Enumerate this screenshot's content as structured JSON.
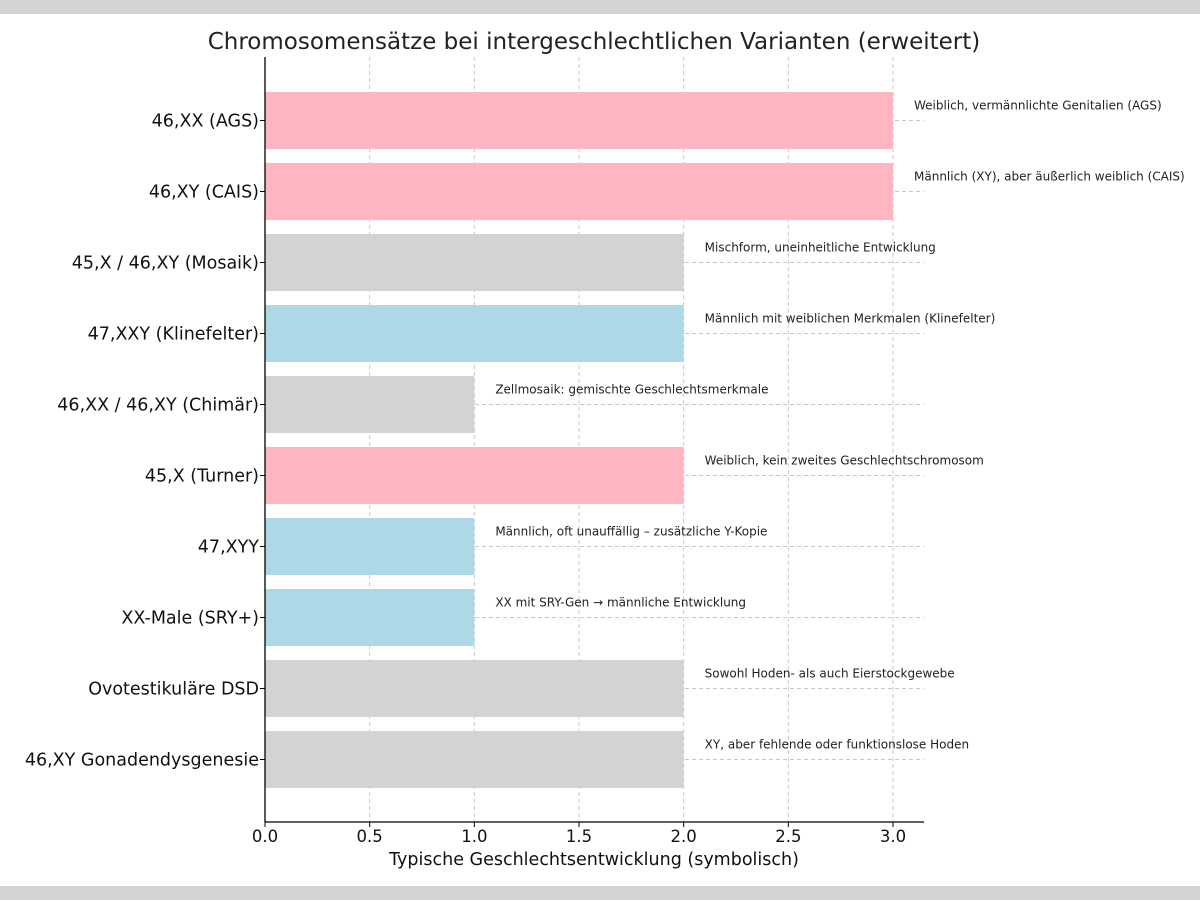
{
  "chart_data": {
    "type": "bar",
    "orientation": "horizontal",
    "title": "Chromosomensätze bei intergeschlechtlichen Varianten (erweitert)",
    "xlabel": "Typische Geschlechtsentwicklung (symbolisch)",
    "ylabel": "",
    "xlim": [
      0,
      3.15
    ],
    "xticks": [
      "0.0",
      "0.5",
      "1.0",
      "1.5",
      "2.0",
      "2.5",
      "3.0"
    ],
    "xtick_values": [
      0,
      0.5,
      1.0,
      1.5,
      2.0,
      2.5,
      3.0
    ],
    "grid": true,
    "categories": [
      "46,XX (AGS)",
      "46,XY (CAIS)",
      "45,X / 46,XY (Mosaik)",
      "47,XXY (Klinefelter)",
      "46,XX / 46,XY (Chimär)",
      "45,X (Turner)",
      "47,XYY",
      "XX-Male (SRY+)",
      "Ovotestikuläre DSD",
      "46,XY Gonadendysgenesie"
    ],
    "values": [
      3,
      3,
      2,
      2,
      1,
      2,
      1,
      1,
      2,
      2
    ],
    "bar_colors": [
      "#ffb6c1",
      "#ffb6c1",
      "#d3d3d3",
      "#add8e6",
      "#d3d3d3",
      "#ffb6c1",
      "#add8e6",
      "#add8e6",
      "#d3d3d3",
      "#d3d3d3"
    ],
    "annotations": [
      "Weiblich, vermännlichte Genitalien (AGS)",
      "Männlich (XY), aber äußerlich weiblich (CAIS)",
      "Mischform, uneinheitliche Entwicklung",
      "Männlich mit weiblichen Merkmalen (Klinefelter)",
      "Zellmosaik: gemischte Geschlechtsmerkmale",
      "Weiblich, kein zweites Geschlechtschromosom",
      "Männlich, oft unauffällig – zusätzliche Y-Kopie",
      "XX mit SRY-Gen → männliche Entwicklung",
      "Sowohl Hoden- als auch Eierstockgewebe",
      "XY, aber fehlende oder funktionslose Hoden"
    ]
  }
}
